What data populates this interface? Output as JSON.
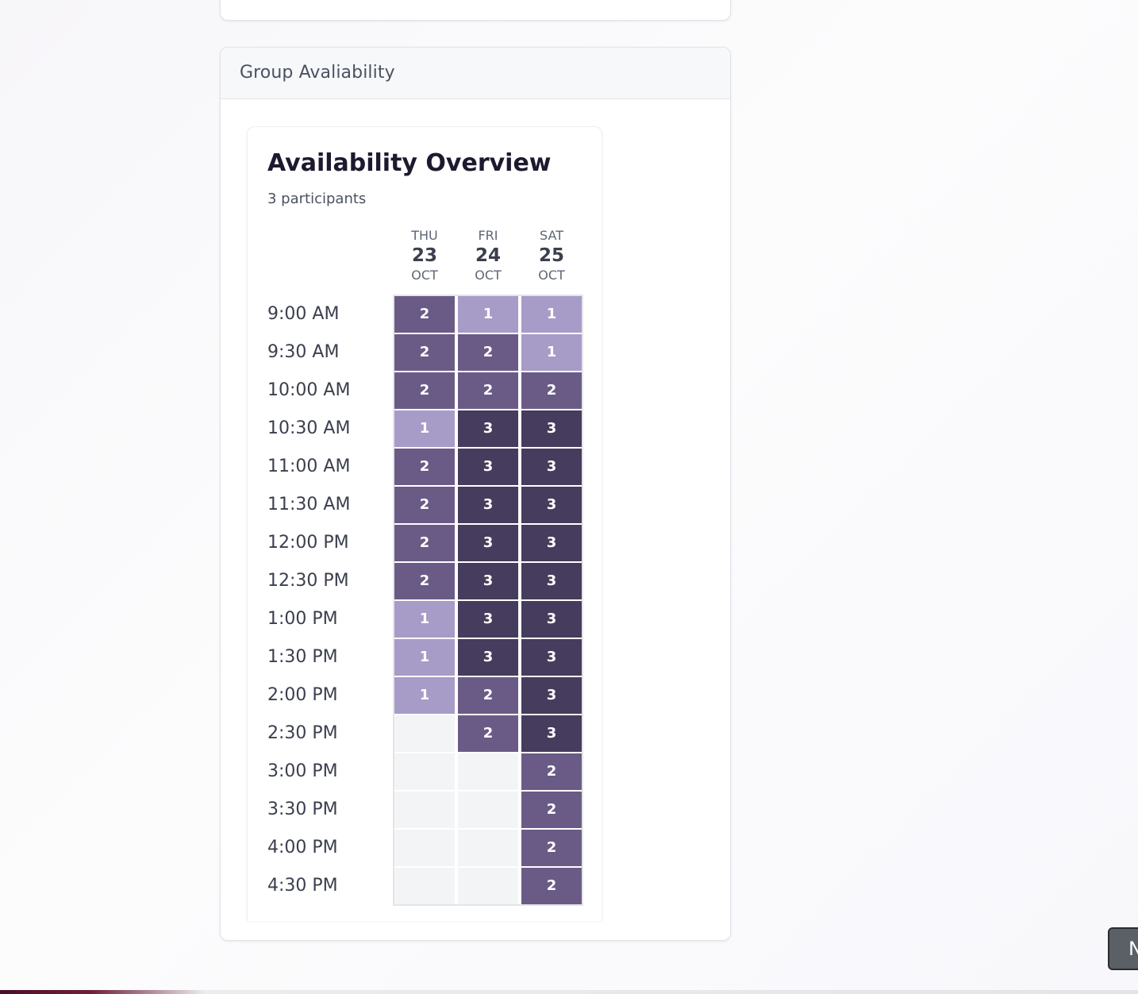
{
  "group_availability": {
    "title": "Group Avaliability",
    "overview": {
      "title": "Availability Overview",
      "participants": "3 participants",
      "max_count": 3,
      "days": [
        {
          "dow": "THU",
          "date": "23",
          "month": "OCT"
        },
        {
          "dow": "FRI",
          "date": "24",
          "month": "OCT"
        },
        {
          "dow": "SAT",
          "date": "25",
          "month": "OCT"
        }
      ],
      "times": [
        "9:00 AM",
        "9:30 AM",
        "10:00 AM",
        "10:30 AM",
        "11:00 AM",
        "11:30 AM",
        "12:00 PM",
        "12:30 PM",
        "1:00 PM",
        "1:30 PM",
        "2:00 PM",
        "2:30 PM",
        "3:00 PM",
        "3:30 PM",
        "4:00 PM",
        "4:30 PM"
      ],
      "counts": [
        [
          2,
          1,
          1
        ],
        [
          2,
          2,
          1
        ],
        [
          2,
          2,
          2
        ],
        [
          1,
          3,
          3
        ],
        [
          2,
          3,
          3
        ],
        [
          2,
          3,
          3
        ],
        [
          2,
          3,
          3
        ],
        [
          2,
          3,
          3
        ],
        [
          1,
          3,
          3
        ],
        [
          1,
          3,
          3
        ],
        [
          1,
          2,
          3
        ],
        [
          0,
          2,
          3
        ],
        [
          0,
          0,
          2
        ],
        [
          0,
          0,
          2
        ],
        [
          0,
          0,
          2
        ],
        [
          0,
          0,
          2
        ]
      ],
      "colors": {
        "empty": "#f3f4f6",
        "one": "#a79bc7",
        "two": "#6a5b86",
        "three": "#463c5d"
      }
    }
  },
  "corner_button": {
    "label": "N"
  }
}
